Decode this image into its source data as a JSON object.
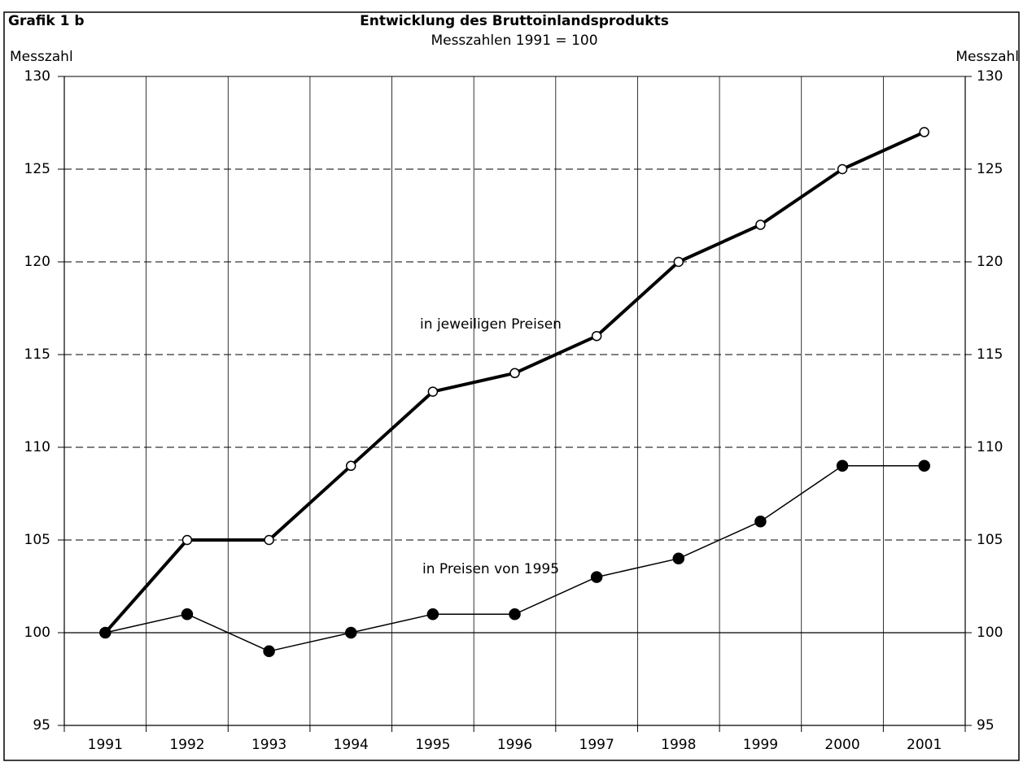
{
  "chart_data": {
    "type": "line",
    "label": "Grafik 1 b",
    "title": "Entwicklung des Bruttoinlandsprodukts",
    "subtitle": "Messzahlen 1991 = 100",
    "ylabel": "Messzahl",
    "y2label": "Messzahl",
    "categories": [
      "1991",
      "1992",
      "1993",
      "1994",
      "1995",
      "1996",
      "1997",
      "1998",
      "1999",
      "2000",
      "2001"
    ],
    "series": [
      {
        "name": "in jeweiligen Preisen",
        "color": "#000000",
        "marker": "open",
        "linewidth": 4,
        "values": [
          100,
          105,
          105,
          109,
          113,
          114,
          116,
          120,
          122,
          125,
          127
        ]
      },
      {
        "name": "in Preisen von 1995",
        "color": "#000000",
        "marker": "filled",
        "linewidth": 1.5,
        "values": [
          100,
          101,
          99,
          100,
          101,
          101,
          103,
          104,
          106,
          109,
          109
        ]
      }
    ],
    "ylim": [
      95,
      130
    ],
    "yticks": [
      95,
      100,
      105,
      110,
      115,
      120,
      125,
      130
    ],
    "y2lim": [
      95,
      130
    ],
    "y2ticks": [
      95,
      100,
      105,
      110,
      115,
      120,
      125,
      130
    ],
    "grid": true,
    "reference_line": 100
  }
}
